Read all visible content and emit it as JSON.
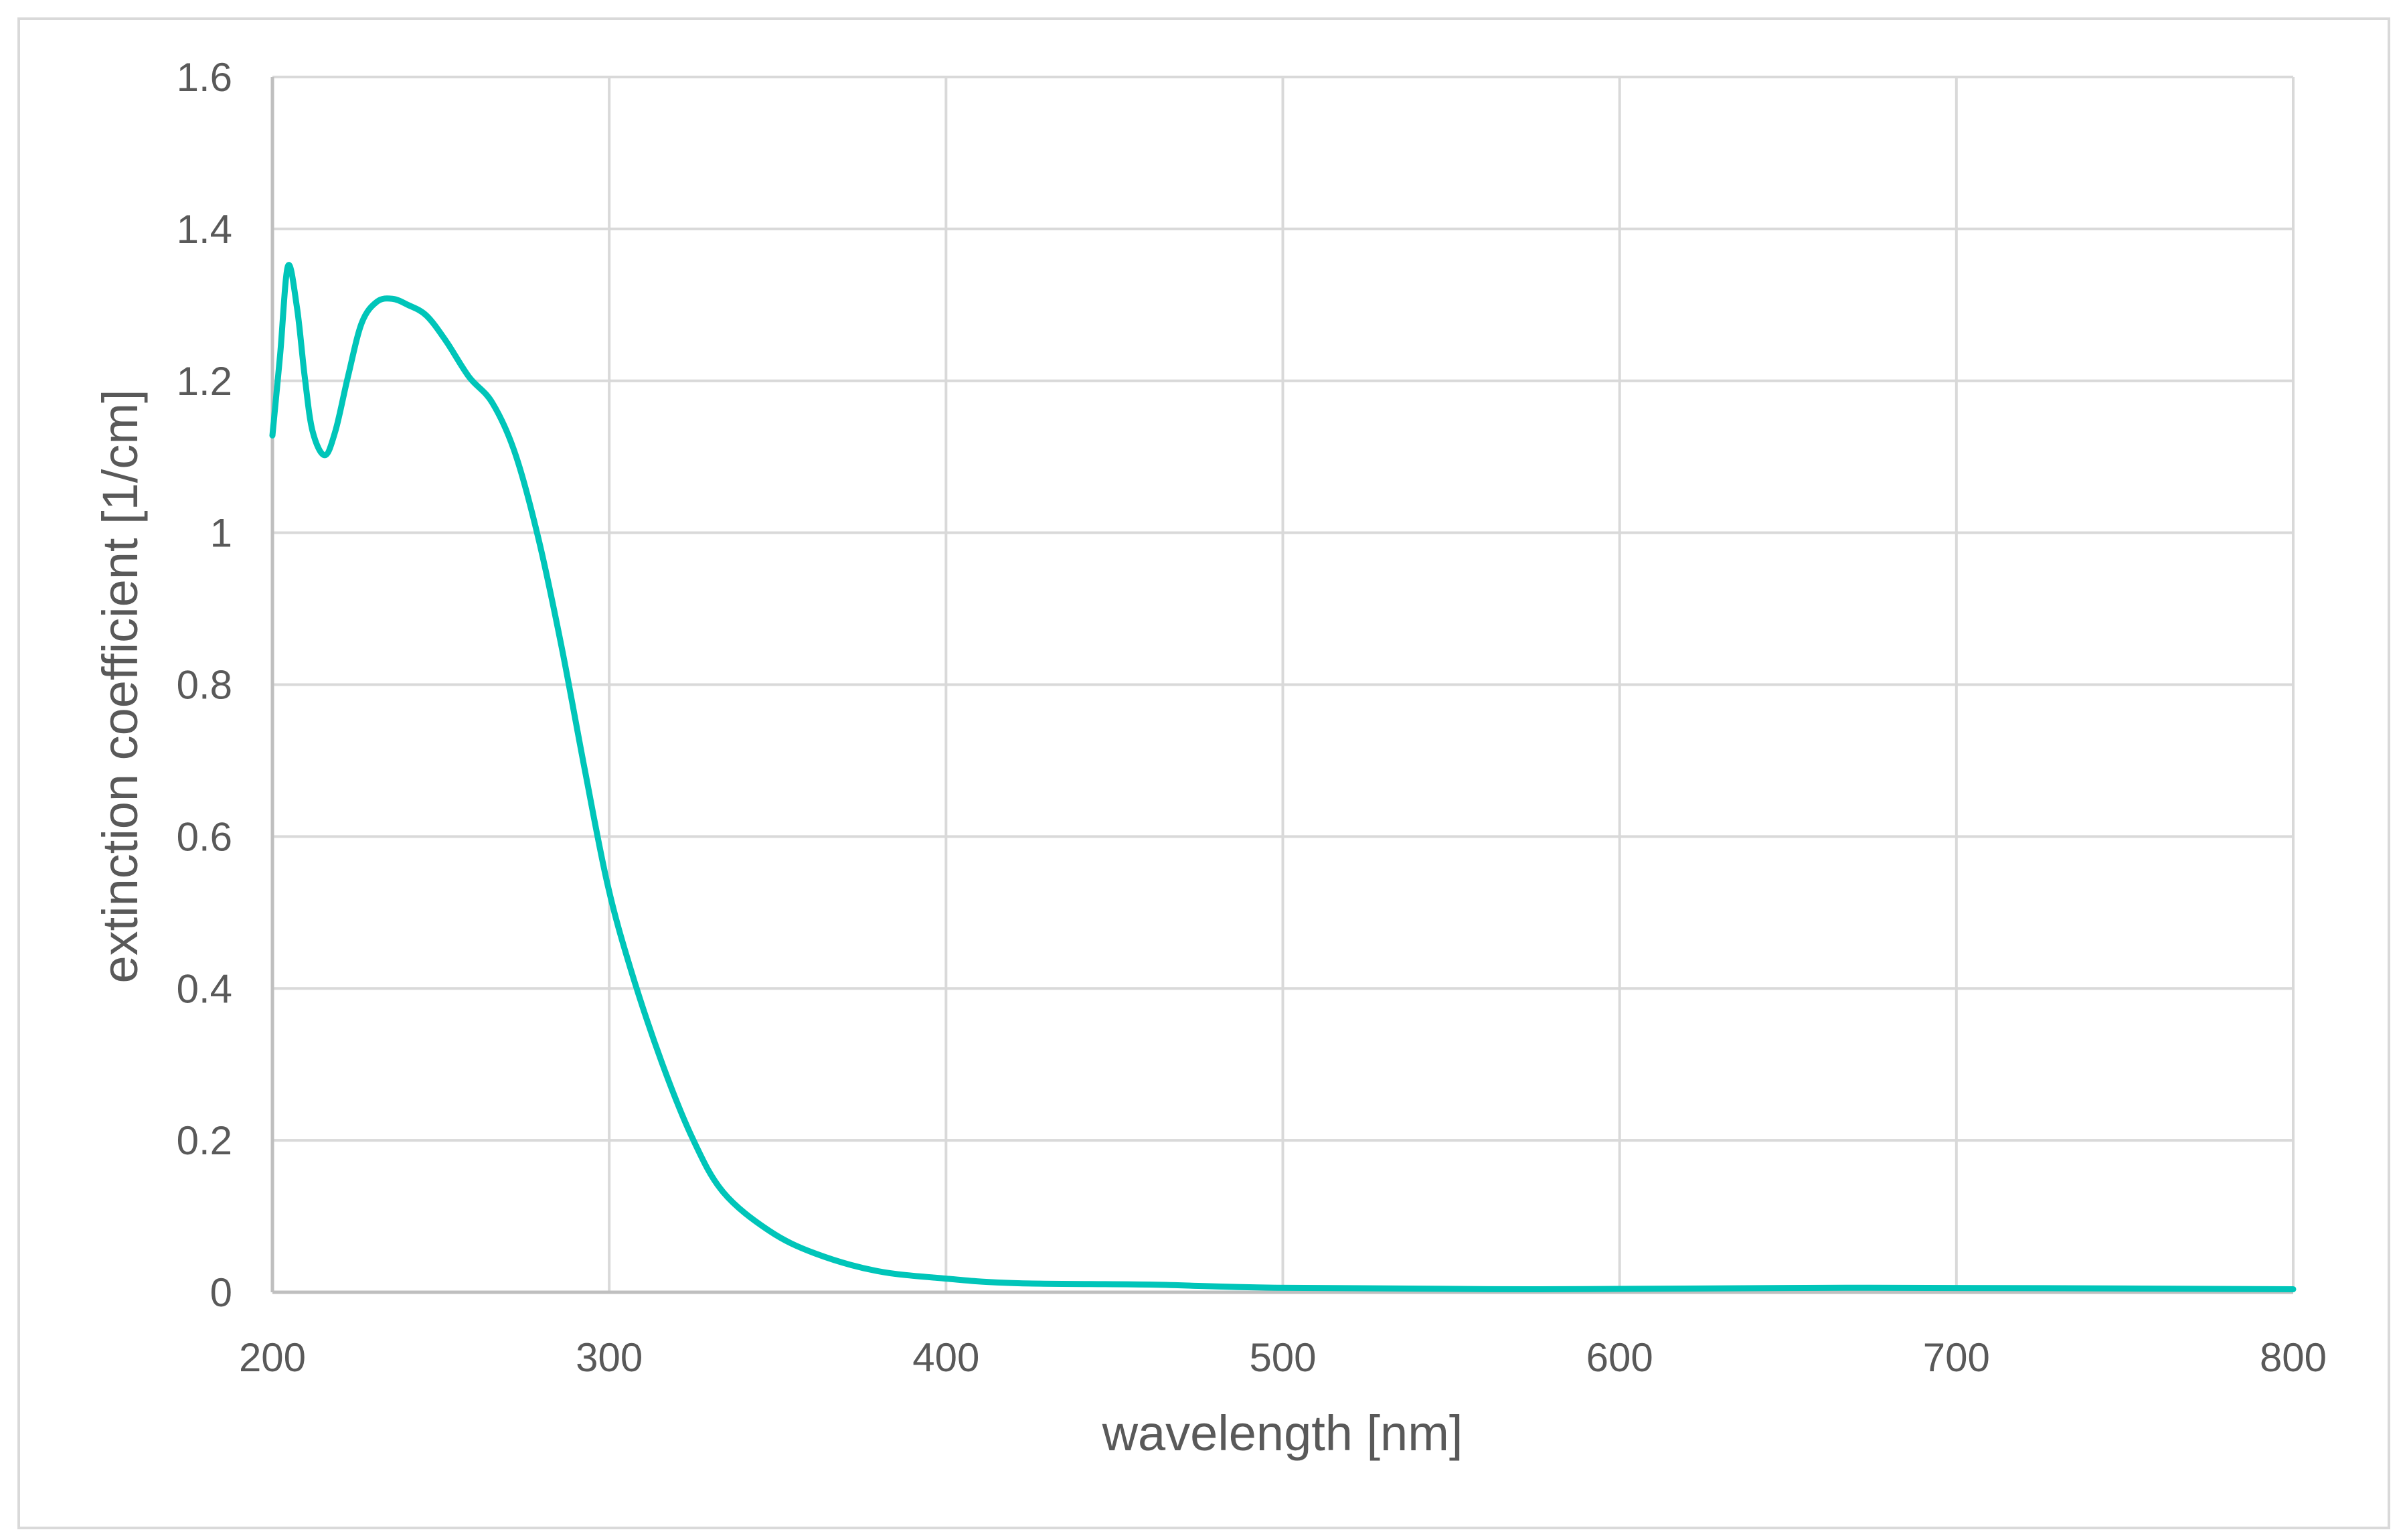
{
  "chart_data": {
    "type": "line",
    "title": "",
    "xlabel": "wavelength [nm]",
    "ylabel": "extinction coefficient [1/cm]",
    "xlim": [
      200,
      800
    ],
    "ylim": [
      0,
      1.6
    ],
    "xticks": [
      200,
      300,
      400,
      500,
      600,
      700,
      800
    ],
    "yticks": [
      0,
      0.2,
      0.4,
      0.6,
      0.8,
      1,
      1.2,
      1.4,
      1.6
    ],
    "xtick_labels": [
      "200",
      "300",
      "400",
      "500",
      "600",
      "700",
      "800"
    ],
    "ytick_labels": [
      "0",
      "0.2",
      "0.4",
      "0.6",
      "0.8",
      "1",
      "1.2",
      "1.4",
      "1.6"
    ],
    "grid": true,
    "legend": "none",
    "series": [
      {
        "name": "extinction coefficient",
        "color": "#00c5b9",
        "x": [
          200,
          202.3,
          204.6,
          207.3,
          209.6,
          211.9,
          215.5,
          218.7,
          222.4,
          226.5,
          231,
          235.6,
          240.2,
          245.7,
          251.6,
          258.4,
          265.3,
          272.1,
          279,
          285.8,
          292.7,
          299.5,
          306.4,
          315.5,
          324.7,
          333.8,
          347.5,
          361.2,
          379.5,
          400,
          420.5,
          461.6,
          498,
          575.8,
          667,
          800
        ],
        "y": [
          1.128,
          1.235,
          1.351,
          1.296,
          1.205,
          1.134,
          1.102,
          1.134,
          1.205,
          1.276,
          1.304,
          1.308,
          1.3,
          1.286,
          1.252,
          1.205,
          1.171,
          1.104,
          0.992,
          0.851,
          0.689,
          0.537,
          0.425,
          0.304,
          0.203,
          0.132,
          0.081,
          0.051,
          0.028,
          0.018,
          0.012,
          0.01,
          0.006,
          0.004,
          0.006,
          0.004
        ]
      }
    ]
  }
}
